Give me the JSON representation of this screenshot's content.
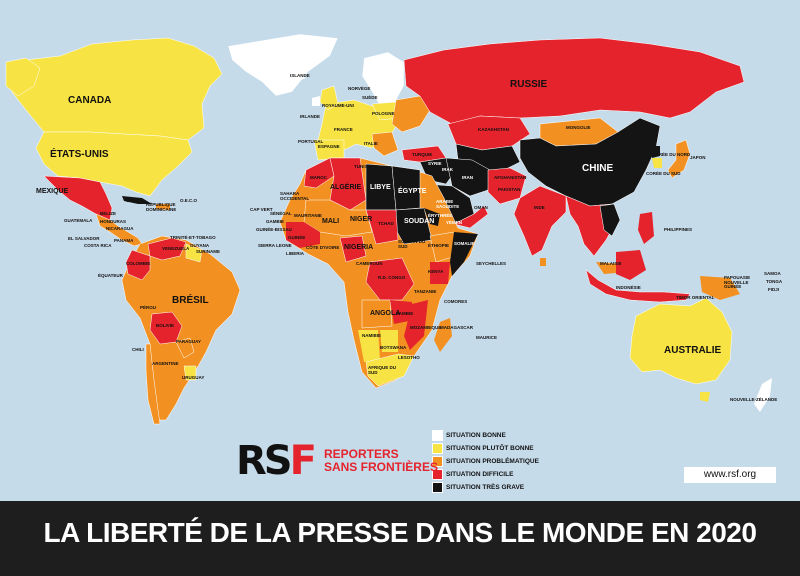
{
  "colors": {
    "ocean": "#c6dbea",
    "bonne": "#ffffff",
    "plutot_bonne": "#f7e343",
    "problematique": "#f29121",
    "difficile": "#e5232c",
    "tres_grave": "#141414",
    "banner": "#1e1e1e"
  },
  "title": "LA LIBERTÉ DE LA PRESSE DANS LE MONDE EN 2020",
  "website": "www.rsf.org",
  "logo": {
    "mark_left": "RS",
    "mark_right": "F",
    "line1": "REPORTERS",
    "line2": "SANS FRONTIÈRES"
  },
  "legend": [
    {
      "label": "SITUATION BONNE",
      "color": "#ffffff"
    },
    {
      "label": "SITUATION PLUTÔT BONNE",
      "color": "#f7e343"
    },
    {
      "label": "SITUATION PROBLÉMATIQUE",
      "color": "#f29121"
    },
    {
      "label": "SITUATION DIFFICILE",
      "color": "#e5232c"
    },
    {
      "label": "SITUATION TRÈS GRAVE",
      "color": "#141414"
    }
  ],
  "countries": {
    "canada": "CANADA",
    "etats_unis": "ÉTATS-UNIS",
    "mexique": "MEXIQUE",
    "cuba": "CUBA",
    "rep_dominicaine": "RÉPUBLIQUE DOMINICAINE",
    "guatemala": "GUATEMALA",
    "belize": "BELIZE",
    "honduras": "HONDURAS",
    "nicaragua": "NICARAGUA",
    "el_salvador": "EL SALVADOR",
    "costa_rica": "COSTA RICA",
    "panama": "PANAMA",
    "venezuela": "VENEZUELA",
    "trinite": "TRINITÉ-ET-TOBAGO",
    "guyana": "GUYANA",
    "suriname": "SURINAME",
    "colombie": "COLOMBIE",
    "equateur": "ÉQUATEUR",
    "perou": "PÉROU",
    "bresil": "BRÉSIL",
    "bolivie": "BOLIVIE",
    "paraguay": "PARAGUAY",
    "chili": "CHILI",
    "argentine": "ARGENTINE",
    "uruguay": "URUGUAY",
    "oeco": "O.E.C.O",
    "islande": "ISLANDE",
    "norvege": "NORVÈGE",
    "suede": "SUÈDE",
    "royaume_uni": "ROYAUME-UNI",
    "irlande": "IRLANDE",
    "france": "FRANCE",
    "espagne": "ESPAGNE",
    "portugal": "PORTUGAL",
    "pologne": "POLOGNE",
    "italie": "ITALIE",
    "russie": "RUSSIE",
    "kazakhstan": "KAZAKHSTAN",
    "mongolie": "MONGOLIE",
    "chine": "CHINE",
    "japon": "JAPON",
    "coree_nord": "CORÉE DU NORD",
    "coree_sud": "CORÉE DU SUD",
    "turquie": "TURQUIE",
    "syrie": "SYRIE",
    "irak": "IRAK",
    "iran": "IRAN",
    "afghanistan": "AFGHANISTAN",
    "pakistan": "PAKISTAN",
    "inde": "INDE",
    "arabie": "ARABIE SAOUDITE",
    "yemen": "YÉMEN",
    "oman": "OMAN",
    "maroc": "MAROC",
    "algerie": "ALGÉRIE",
    "tunisie": "TUNISIE",
    "libye": "LIBYE",
    "egypte": "ÉGYPTE",
    "sahara": "SAHARA OCCIDENTAL",
    "mauritanie": "MAURITANIE",
    "mali": "MALI",
    "niger": "NIGER",
    "tchad": "TCHAD",
    "soudan": "SOUDAN",
    "soudan_sud": "SOUDAN DU SUD",
    "erythree": "ÉRYTHRÉE",
    "ethiopie": "ÉTHIOPIE",
    "somalie": "SOMALIE",
    "senegal": "SÉNÉGAL",
    "gambie": "GAMBIE",
    "guinee_bissau": "GUINÉE-BISSAU",
    "guinee": "GUINÉE",
    "sierra_leone": "SIERRA LEONE",
    "liberia": "LIBERIA",
    "cote_ivoire": "CÔTE D'IVOIRE",
    "cap_vert": "CAP VERT",
    "nigeria": "NIGERIA",
    "cameroun": "CAMEROUN",
    "rd_congo": "R.D. CONGO",
    "kenya": "KENYA",
    "tanzanie": "TANZANIE",
    "angola": "ANGOLA",
    "zambie": "ZAMBIE",
    "namibie": "NAMIBIE",
    "botswana": "BOTSWANA",
    "mozambique": "MOZAMBIQUE",
    "madagascar": "MADAGASCAR",
    "afrique_sud": "AFRIQUE DU SUD",
    "lesotho": "LESOTHO",
    "comores": "COMORES",
    "seychelles": "SEYCHELLES",
    "maurice": "MAURICE",
    "philippines": "PHILIPPINES",
    "indonesie": "INDONÉSIE",
    "malaisie": "MALAISIE",
    "papouasie": "PAPOUASIE NOUVELLE GUINÉE",
    "timor": "TIMOR ORIENTAL",
    "australie": "AUSTRALIE",
    "nz": "NOUVELLE-ZÉLANDE",
    "fidji": "FIDJI",
    "samoa": "SAMOA",
    "tonga": "TONGA"
  }
}
